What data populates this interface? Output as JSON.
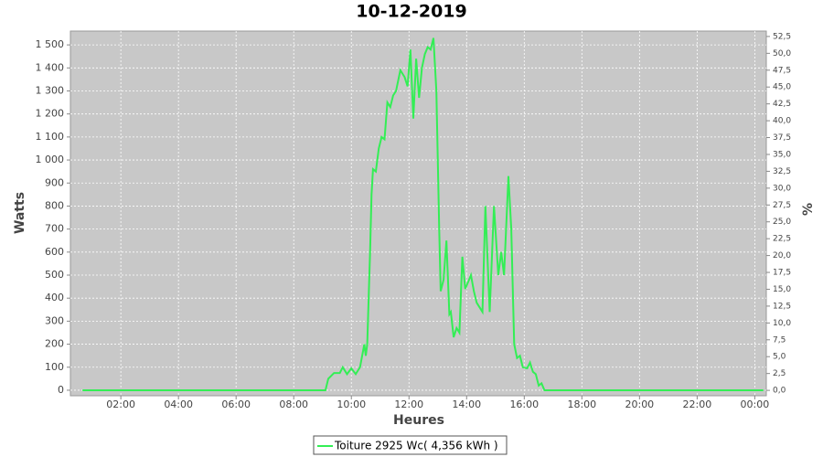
{
  "chart_data": {
    "type": "line",
    "title": "10-12-2019",
    "x_label": "Heures",
    "y_label": "Watts",
    "y2_label": "%",
    "xlim": [
      0.25,
      24.4
    ],
    "ylim": [
      -24,
      1560
    ],
    "y2lim": [
      -0.8,
      53.3
    ],
    "grid": true,
    "xticks": [
      {
        "value": 2,
        "label": "02:00"
      },
      {
        "value": 4,
        "label": "04:00"
      },
      {
        "value": 6,
        "label": "06:00"
      },
      {
        "value": 8,
        "label": "08:00"
      },
      {
        "value": 10,
        "label": "10:00"
      },
      {
        "value": 12,
        "label": "12:00"
      },
      {
        "value": 14,
        "label": "14:00"
      },
      {
        "value": 16,
        "label": "16:00"
      },
      {
        "value": 18,
        "label": "18:00"
      },
      {
        "value": 20,
        "label": "20:00"
      },
      {
        "value": 22,
        "label": "22:00"
      },
      {
        "value": 24,
        "label": "00:00"
      }
    ],
    "yticks": [
      0,
      100,
      200,
      300,
      400,
      500,
      600,
      700,
      800,
      900,
      {
        "value": 1000,
        "label": "1 000"
      },
      {
        "value": 1100,
        "label": "1 100"
      },
      {
        "value": 1200,
        "label": "1 200"
      },
      {
        "value": 1300,
        "label": "1 300"
      },
      {
        "value": 1400,
        "label": "1 400"
      },
      {
        "value": 1500,
        "label": "1 500"
      }
    ],
    "y2ticks": [
      {
        "value": 0,
        "label": "0,0"
      },
      {
        "value": 2.5,
        "label": "2,5"
      },
      {
        "value": 5,
        "label": "5,0"
      },
      {
        "value": 7.5,
        "label": "7,5"
      },
      {
        "value": 10,
        "label": "10,0"
      },
      {
        "value": 12.5,
        "label": "12,5"
      },
      {
        "value": 15,
        "label": "15,0"
      },
      {
        "value": 17.5,
        "label": "17,5"
      },
      {
        "value": 20,
        "label": "20,0"
      },
      {
        "value": 22.5,
        "label": "22,5"
      },
      {
        "value": 25,
        "label": "25,0"
      },
      {
        "value": 27.5,
        "label": "27,5"
      },
      {
        "value": 30,
        "label": "30,0"
      },
      {
        "value": 32.5,
        "label": "32,5"
      },
      {
        "value": 35,
        "label": "35,0"
      },
      {
        "value": 37.5,
        "label": "37,5"
      },
      {
        "value": 40,
        "label": "40,0"
      },
      {
        "value": 42.5,
        "label": "42,5"
      },
      {
        "value": 45,
        "label": "45,0"
      },
      {
        "value": 47.5,
        "label": "47,5"
      },
      {
        "value": 50,
        "label": "50,0"
      },
      {
        "value": 52.5,
        "label": "52,5"
      }
    ],
    "x": [
      0.67,
      9.1,
      9.2,
      9.4,
      9.6,
      9.7,
      9.85,
      10.0,
      10.15,
      10.3,
      10.45,
      10.5,
      10.55,
      10.65,
      10.7,
      10.75,
      10.85,
      10.95,
      11.05,
      11.15,
      11.25,
      11.35,
      11.45,
      11.55,
      11.7,
      11.85,
      11.95,
      12.05,
      12.15,
      12.25,
      12.35,
      12.45,
      12.55,
      12.65,
      12.75,
      12.85,
      12.95,
      13.05,
      13.1,
      13.2,
      13.3,
      13.4,
      13.45,
      13.55,
      13.65,
      13.75,
      13.85,
      13.95,
      14.05,
      14.15,
      14.25,
      14.35,
      14.55,
      14.65,
      14.8,
      14.95,
      15.1,
      15.2,
      15.3,
      15.45,
      15.55,
      15.65,
      15.75,
      15.85,
      15.95,
      16.1,
      16.2,
      16.3,
      16.4,
      16.5,
      16.6,
      16.7,
      24.3
    ],
    "series": [
      {
        "name": "Toiture 2925 Wc( 4,356 kWh )",
        "color": "#33ee55",
        "values": [
          0,
          0,
          50,
          75,
          75,
          100,
          70,
          95,
          70,
          100,
          200,
          150,
          200,
          600,
          850,
          960,
          950,
          1050,
          1100,
          1090,
          1250,
          1230,
          1280,
          1300,
          1390,
          1360,
          1320,
          1480,
          1180,
          1440,
          1270,
          1400,
          1460,
          1490,
          1480,
          1530,
          1300,
          700,
          430,
          480,
          650,
          330,
          340,
          230,
          270,
          250,
          580,
          440,
          470,
          500,
          430,
          380,
          340,
          800,
          340,
          800,
          500,
          600,
          500,
          930,
          700,
          200,
          140,
          150,
          100,
          95,
          120,
          80,
          70,
          20,
          30,
          0,
          0
        ]
      }
    ]
  }
}
